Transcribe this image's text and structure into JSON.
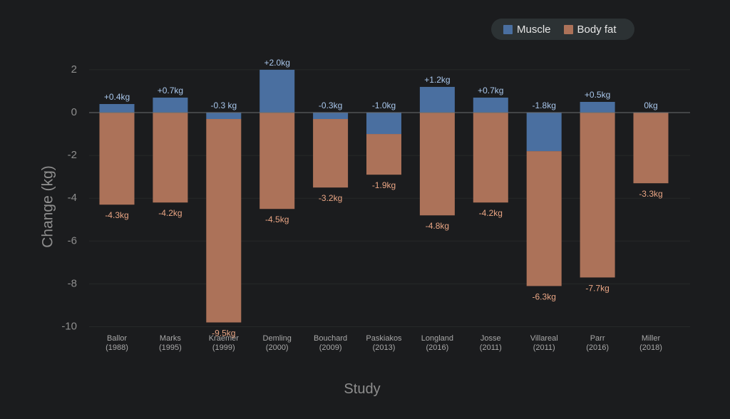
{
  "chart_data": {
    "type": "bar",
    "stacked": true,
    "xlabel": "Study",
    "ylabel": "Change (kg)",
    "ylim": [
      -10,
      2.5
    ],
    "yticks": [
      2,
      0,
      -2,
      -4,
      -6,
      -8,
      -10
    ],
    "grid": true,
    "legend_position": "top-right",
    "categories": [
      [
        "Ballor",
        "(1988)"
      ],
      [
        "Marks",
        "(1995)"
      ],
      [
        "Kraemer",
        "(1999)"
      ],
      [
        "Demling",
        "(2000)"
      ],
      [
        "Bouchard",
        "(2009)"
      ],
      [
        "Paskiakos",
        "(2013)"
      ],
      [
        "Longland",
        "(2016)"
      ],
      [
        "Josse",
        "(2011)"
      ],
      [
        "Villareal",
        "(2011)"
      ],
      [
        "Parr",
        "(2016)"
      ],
      [
        "Miller",
        "(2018)"
      ]
    ],
    "series": [
      {
        "name": "Muscle",
        "color": "#4a6fa0",
        "label_color": "#a9c7ec",
        "values": [
          0.4,
          0.7,
          -0.3,
          2.0,
          -0.3,
          -1.0,
          1.2,
          0.7,
          -1.8,
          0.5,
          0
        ],
        "labels": [
          "+0.4kg",
          "+0.7kg",
          "-0.3 kg",
          "+2.0kg",
          "-0.3kg",
          "-1.0kg",
          "+1.2kg",
          "+0.7kg",
          "-1.8kg",
          "+0.5kg",
          "0kg"
        ]
      },
      {
        "name": "Body fat",
        "color": "#ac7259",
        "label_color": "#e9a584",
        "values": [
          -4.3,
          -4.2,
          -9.5,
          -4.5,
          -3.2,
          -1.9,
          -4.8,
          -4.2,
          -6.3,
          -7.7,
          -3.3
        ],
        "labels": [
          "-4.3kg",
          "-4.2kg",
          "-9.5kg",
          "-4.5kg",
          "-3.2kg",
          "-1.9kg",
          "-4.8kg",
          "-4.2kg",
          "-6.3kg",
          "-7.7kg",
          "-3.3kg"
        ]
      }
    ]
  }
}
